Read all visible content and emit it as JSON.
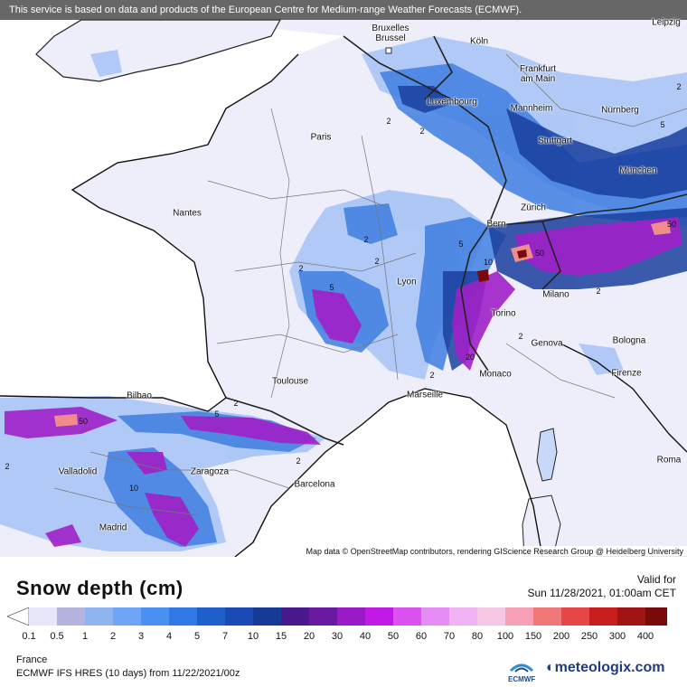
{
  "map": {
    "disclaimer": "This service is based on data and products of the European Centre for Medium-range Weather Forecasts (ECMWF).",
    "credit": "Map data © OpenStreetMap contributors, rendering GIScience Research Group @ Heidelberg University",
    "cities": [
      {
        "name": "Bruxelles Brussel",
        "l1": "Bruxelles",
        "l2": "Brussel"
      },
      {
        "name": "Köln",
        "l1": "Köln"
      },
      {
        "name": "Leipzig",
        "l1": "Leipzig"
      },
      {
        "name": "Frankfurt am Main",
        "l1": "Frankfurt",
        "l2": "am Main"
      },
      {
        "name": "Luxembourg",
        "l1": "Luxembourg"
      },
      {
        "name": "Mannheim",
        "l1": "Mannheim"
      },
      {
        "name": "Nürnberg",
        "l1": "Nürnberg"
      },
      {
        "name": "Paris",
        "l1": "Paris"
      },
      {
        "name": "Stuttgart",
        "l1": "Stuttgart"
      },
      {
        "name": "München",
        "l1": "München"
      },
      {
        "name": "Nantes",
        "l1": "Nantes"
      },
      {
        "name": "Zürich",
        "l1": "Zürich"
      },
      {
        "name": "Bern",
        "l1": "Bern"
      },
      {
        "name": "Lyon",
        "l1": "Lyon"
      },
      {
        "name": "Milano",
        "l1": "Milano"
      },
      {
        "name": "Torino",
        "l1": "Torino"
      },
      {
        "name": "Genova",
        "l1": "Genova"
      },
      {
        "name": "Bologna",
        "l1": "Bologna"
      },
      {
        "name": "Toulouse",
        "l1": "Toulouse"
      },
      {
        "name": "Monaco",
        "l1": "Monaco"
      },
      {
        "name": "Firenze",
        "l1": "Firenze"
      },
      {
        "name": "Marseille",
        "l1": "Marseille"
      },
      {
        "name": "Bilbao",
        "l1": "Bilbao"
      },
      {
        "name": "Valladolid",
        "l1": "Valladolid"
      },
      {
        "name": "Zaragoza",
        "l1": "Zaragoza"
      },
      {
        "name": "Barcelona",
        "l1": "Barcelona"
      },
      {
        "name": "Roma",
        "l1": "Roma"
      },
      {
        "name": "Madrid",
        "l1": "Madrid"
      }
    ],
    "contour_labels": [
      "2",
      "2",
      "2",
      "2",
      "2",
      "2",
      "2",
      "2",
      "2",
      "2",
      "5",
      "5",
      "5",
      "10",
      "10",
      "20",
      "50",
      "50",
      "50",
      "2",
      "2",
      "5"
    ]
  },
  "legend": {
    "title": "Snow depth (cm)",
    "valid_label": "Valid for",
    "valid_time": "Sun 11/28/2021, 01:00am CET",
    "region": "France",
    "model": "ECMWF IFS HRES (10 days) from 11/22/2021/00z",
    "ecmwf_text": "ECMWF",
    "brand": "meteologix.com",
    "ticks": [
      "0.1",
      "0.5",
      "1",
      "2",
      "3",
      "4",
      "5",
      "7",
      "10",
      "15",
      "20",
      "30",
      "40",
      "50",
      "60",
      "70",
      "80",
      "100",
      "150",
      "200",
      "250",
      "300",
      "400"
    ],
    "colors": [
      "#e6e6fa",
      "#b4b4dc",
      "#8fb4f0",
      "#6ea5f5",
      "#4a90f0",
      "#2f78e6",
      "#1e5fcc",
      "#1a4bb4",
      "#163a96",
      "#4a1a8c",
      "#6a1aa0",
      "#9a1ac8",
      "#c21ae6",
      "#dc50f0",
      "#e68cf5",
      "#f0b4f5",
      "#f5c8e6",
      "#f5a0b4",
      "#f07878",
      "#e64646",
      "#c81e1e",
      "#a01414",
      "#7a0a0a",
      "#501010"
    ]
  }
}
